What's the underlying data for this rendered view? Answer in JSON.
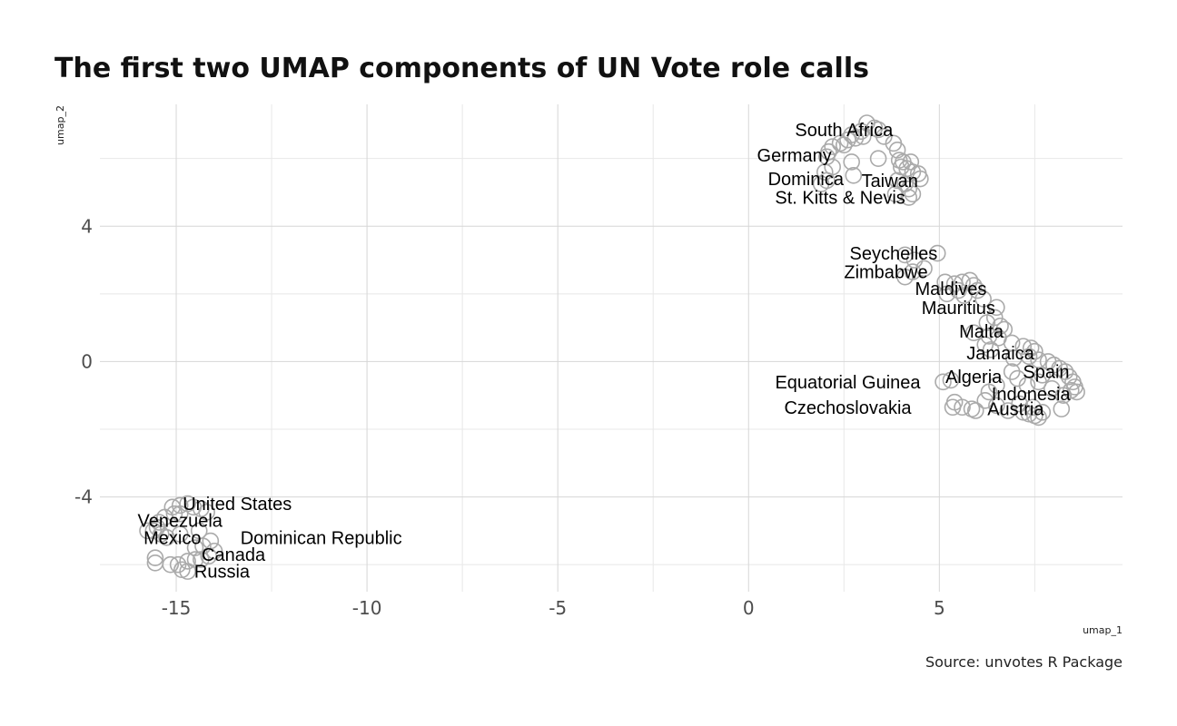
{
  "chart_data": {
    "type": "scatter",
    "title": "The first two UMAP components of UN Vote role calls",
    "xlabel": "umap_1",
    "ylabel": "umap_2",
    "caption": "Source: unvotes R Package",
    "xlim": [
      -17.0,
      9.8
    ],
    "ylim": [
      -6.8,
      7.6
    ],
    "x_ticks": [
      -15,
      -10,
      -5,
      0,
      5
    ],
    "y_ticks": [
      -4,
      0,
      4
    ],
    "grid": true,
    "point_color": "#aaaaaa",
    "labels": [
      {
        "text": "South Africa",
        "x": 2.5,
        "y": 6.85
      },
      {
        "text": "Germany",
        "x": 1.2,
        "y": 6.1
      },
      {
        "text": "Dominica",
        "x": 1.5,
        "y": 5.4
      },
      {
        "text": "Taiwan",
        "x": 3.7,
        "y": 5.35
      },
      {
        "text": "St. Kitts & Nevis",
        "x": 2.4,
        "y": 4.85
      },
      {
        "text": "Seychelles",
        "x": 3.8,
        "y": 3.2
      },
      {
        "text": "Zimbabwe",
        "x": 3.6,
        "y": 2.65
      },
      {
        "text": "Maldives",
        "x": 5.3,
        "y": 2.15
      },
      {
        "text": "Mauritius",
        "x": 5.5,
        "y": 1.6
      },
      {
        "text": "Malta",
        "x": 6.1,
        "y": 0.9
      },
      {
        "text": "Jamaica",
        "x": 6.6,
        "y": 0.25
      },
      {
        "text": "Spain",
        "x": 7.8,
        "y": -0.3
      },
      {
        "text": "Equatorial Guinea",
        "x": 2.6,
        "y": -0.6
      },
      {
        "text": "Algeria",
        "x": 5.9,
        "y": -0.45
      },
      {
        "text": "Indonesia",
        "x": 7.4,
        "y": -0.95
      },
      {
        "text": "Czechoslovakia",
        "x": 2.6,
        "y": -1.35
      },
      {
        "text": "Austria",
        "x": 7.0,
        "y": -1.4
      },
      {
        "text": "United States",
        "x": -13.4,
        "y": -4.2
      },
      {
        "text": "Venezuela",
        "x": -14.9,
        "y": -4.7
      },
      {
        "text": "Mexico",
        "x": -15.1,
        "y": -5.2
      },
      {
        "text": "Dominican Republic",
        "x": -11.2,
        "y": -5.2
      },
      {
        "text": "Canada",
        "x": -13.5,
        "y": -5.7
      },
      {
        "text": "Russia",
        "x": -13.8,
        "y": -6.2
      }
    ],
    "points": [
      [
        3.1,
        7.05
      ],
      [
        3.3,
        6.9
      ],
      [
        3.4,
        6.85
      ],
      [
        2.95,
        6.8
      ],
      [
        2.7,
        6.7
      ],
      [
        2.6,
        6.55
      ],
      [
        2.8,
        6.6
      ],
      [
        3.0,
        6.65
      ],
      [
        2.4,
        6.45
      ],
      [
        2.2,
        6.35
      ],
      [
        2.5,
        6.4
      ],
      [
        2.1,
        6.2
      ],
      [
        2.05,
        6.05
      ],
      [
        3.55,
        6.65
      ],
      [
        3.8,
        6.45
      ],
      [
        3.9,
        6.25
      ],
      [
        3.4,
        6.0
      ],
      [
        3.95,
        5.95
      ],
      [
        4.05,
        5.9
      ],
      [
        4.25,
        5.9
      ],
      [
        4.0,
        5.75
      ],
      [
        4.15,
        5.7
      ],
      [
        4.3,
        5.6
      ],
      [
        4.45,
        5.55
      ],
      [
        4.5,
        5.4
      ],
      [
        2.0,
        5.6
      ],
      [
        2.2,
        5.75
      ],
      [
        2.7,
        5.9
      ],
      [
        2.75,
        5.5
      ],
      [
        2.05,
        5.35
      ],
      [
        1.9,
        5.25
      ],
      [
        3.9,
        5.35
      ],
      [
        4.1,
        5.25
      ],
      [
        4.2,
        5.1
      ],
      [
        4.3,
        4.95
      ],
      [
        4.2,
        4.85
      ],
      [
        3.85,
        4.95
      ],
      [
        4.1,
        3.15
      ],
      [
        4.35,
        3.0
      ],
      [
        4.95,
        3.2
      ],
      [
        4.6,
        2.75
      ],
      [
        4.3,
        2.65
      ],
      [
        4.1,
        2.5
      ],
      [
        5.15,
        2.35
      ],
      [
        5.4,
        2.3
      ],
      [
        5.6,
        2.35
      ],
      [
        5.8,
        2.4
      ],
      [
        5.9,
        2.25
      ],
      [
        6.0,
        2.1
      ],
      [
        5.5,
        2.1
      ],
      [
        5.2,
        2.0
      ],
      [
        5.65,
        1.95
      ],
      [
        6.15,
        1.85
      ],
      [
        6.5,
        1.6
      ],
      [
        6.45,
        1.3
      ],
      [
        6.25,
        1.15
      ],
      [
        6.6,
        1.05
      ],
      [
        6.7,
        0.95
      ],
      [
        5.9,
        0.85
      ],
      [
        6.3,
        0.75
      ],
      [
        6.55,
        0.7
      ],
      [
        6.9,
        0.55
      ],
      [
        6.2,
        0.5
      ],
      [
        6.35,
        0.35
      ],
      [
        7.2,
        0.45
      ],
      [
        7.4,
        0.4
      ],
      [
        7.5,
        0.3
      ],
      [
        7.35,
        0.15
      ],
      [
        6.95,
        0.1
      ],
      [
        7.6,
        0.05
      ],
      [
        7.85,
        0.0
      ],
      [
        8.0,
        -0.1
      ],
      [
        8.15,
        -0.2
      ],
      [
        8.3,
        -0.3
      ],
      [
        8.4,
        -0.45
      ],
      [
        8.5,
        -0.6
      ],
      [
        8.55,
        -0.75
      ],
      [
        8.45,
        -0.85
      ],
      [
        8.6,
        -0.9
      ],
      [
        8.25,
        -1.0
      ],
      [
        7.95,
        -0.8
      ],
      [
        7.7,
        -0.4
      ],
      [
        7.6,
        -0.6
      ],
      [
        7.3,
        -0.7
      ],
      [
        7.05,
        -0.5
      ],
      [
        6.9,
        -0.3
      ],
      [
        6.5,
        -0.7
      ],
      [
        6.3,
        -0.9
      ],
      [
        6.2,
        -1.15
      ],
      [
        6.5,
        -1.3
      ],
      [
        6.8,
        -1.45
      ],
      [
        7.2,
        -1.5
      ],
      [
        7.5,
        -1.6
      ],
      [
        7.7,
        -1.5
      ],
      [
        7.45,
        -1.35
      ],
      [
        7.35,
        -1.55
      ],
      [
        7.6,
        -1.65
      ],
      [
        7.1,
        -1.25
      ],
      [
        8.2,
        -1.4
      ],
      [
        5.3,
        -0.55
      ],
      [
        5.1,
        -0.6
      ],
      [
        5.4,
        -1.2
      ],
      [
        5.35,
        -1.35
      ],
      [
        5.6,
        -1.35
      ],
      [
        5.85,
        -1.4
      ],
      [
        5.95,
        -1.45
      ],
      [
        -15.1,
        -4.3
      ],
      [
        -14.9,
        -4.25
      ],
      [
        -14.7,
        -4.2
      ],
      [
        -14.55,
        -4.3
      ],
      [
        -14.35,
        -4.35
      ],
      [
        -14.2,
        -4.45
      ],
      [
        -14.9,
        -4.5
      ],
      [
        -15.05,
        -4.5
      ],
      [
        -15.3,
        -4.6
      ],
      [
        -15.45,
        -4.75
      ],
      [
        -15.5,
        -4.9
      ],
      [
        -15.6,
        -5.0
      ],
      [
        -15.75,
        -5.0
      ],
      [
        -15.4,
        -5.1
      ],
      [
        -15.25,
        -5.2
      ],
      [
        -14.9,
        -5.1
      ],
      [
        -14.4,
        -5.0
      ],
      [
        -14.1,
        -5.3
      ],
      [
        -14.3,
        -5.45
      ],
      [
        -14.5,
        -5.5
      ],
      [
        -14.0,
        -5.6
      ],
      [
        -14.15,
        -5.75
      ],
      [
        -14.35,
        -5.85
      ],
      [
        -14.5,
        -5.85
      ],
      [
        -14.7,
        -5.9
      ],
      [
        -15.55,
        -5.8
      ],
      [
        -15.55,
        -5.95
      ],
      [
        -15.15,
        -6.0
      ],
      [
        -14.95,
        -6.0
      ],
      [
        -14.85,
        -6.15
      ],
      [
        -14.7,
        -6.2
      ]
    ]
  }
}
